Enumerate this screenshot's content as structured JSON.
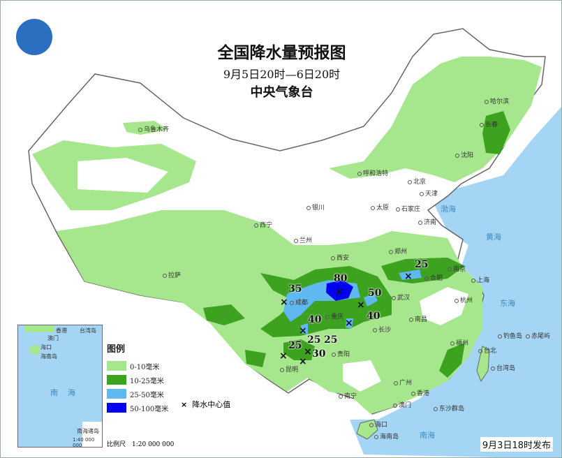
{
  "header": {
    "title": "全国降水量预报图",
    "period": "9月5日20时—6日20时",
    "agency": "中央气象台",
    "logo": "cma-logo"
  },
  "legend": {
    "title": "图例",
    "items": [
      {
        "label": "0-10毫米",
        "color": "#a6e68c"
      },
      {
        "label": "10-25毫米",
        "color": "#3da21f"
      },
      {
        "label": "25-50毫米",
        "color": "#60b8f0"
      },
      {
        "label": "50-100毫米",
        "color": "#0000f0"
      }
    ],
    "center_symbol": "×",
    "center_label": "降水中心值"
  },
  "scale": "比例尺　1:20 000 000",
  "inset": {
    "labels": [
      "香港",
      "台湾岛",
      "澳门",
      "海口",
      "海南岛",
      "南海"
    ],
    "title": "南海诸岛",
    "scale": "1:40 000 000"
  },
  "issued": "9月3日18时发布",
  "cities": [
    "乌鲁木齐",
    "哈尔滨",
    "长春",
    "沈阳",
    "呼和浩特",
    "北京",
    "天津",
    "银川",
    "太原",
    "石家庄",
    "济南",
    "西宁",
    "兰州",
    "西安",
    "郑州",
    "合肥",
    "南京",
    "上海",
    "拉萨",
    "成都",
    "重庆",
    "武汉",
    "杭州",
    "长沙",
    "南昌",
    "贵阳",
    "昆明",
    "福州",
    "台北",
    "广州",
    "香港",
    "澳门",
    "南宁",
    "海口",
    "海南岛",
    "台湾岛",
    "钓鱼岛",
    "赤尾屿",
    "东沙群岛"
  ],
  "seas": [
    "渤海",
    "黄海",
    "东海",
    "南海"
  ],
  "rain_centers": [
    "80",
    "35",
    "50",
    "40",
    "40",
    "25",
    "25",
    "25",
    "25",
    "30"
  ]
}
